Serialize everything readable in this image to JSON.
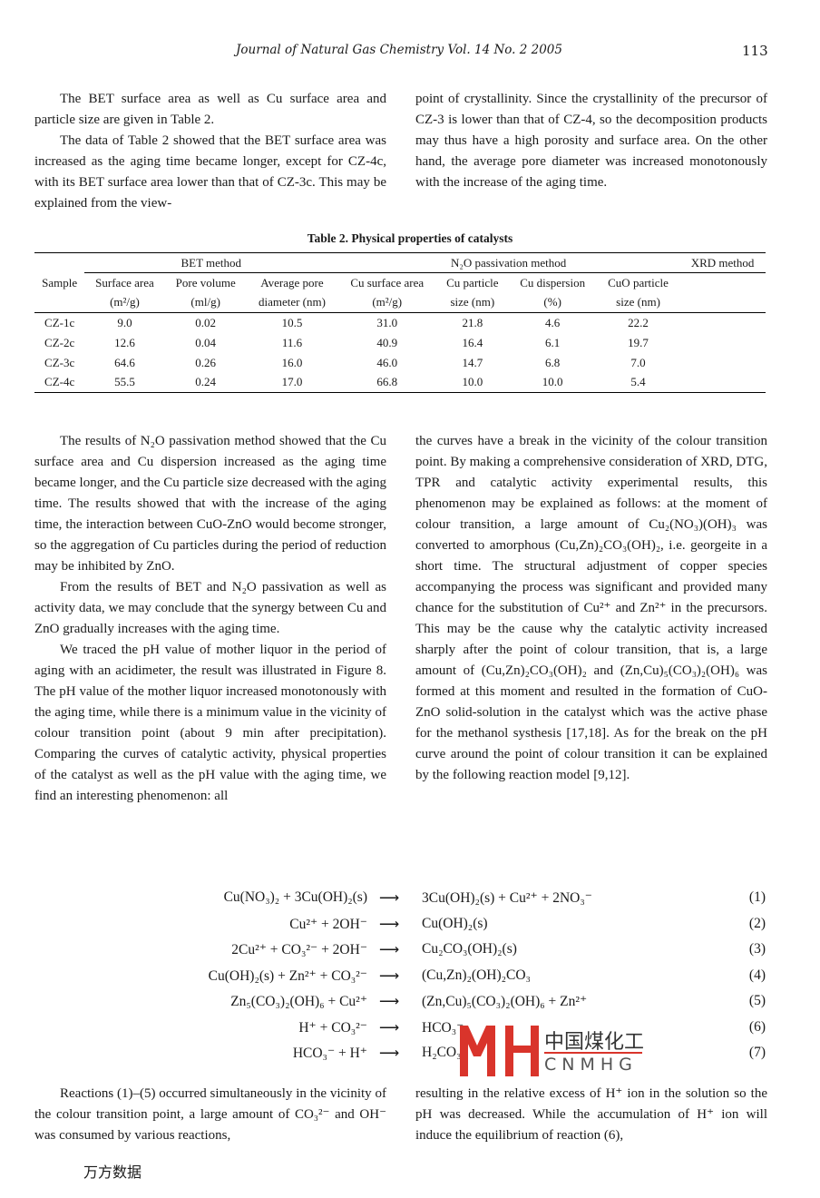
{
  "header": {
    "journal": "Journal of Natural Gas Chemistry Vol. 14 No. 2 2005",
    "page": "113"
  },
  "top_left": [
    "The BET surface area as well as Cu surface area and particle size are given in Table 2.",
    "The data of Table 2 showed that the BET surface area was increased as the aging time became longer, except for CZ-4c, with its BET surface area lower than that of CZ-3c. This may be explained from the view-"
  ],
  "top_right": "point of crystallinity. Since the crystallinity of the precursor of CZ-3 is lower than that of CZ-4, so the decomposition products may thus have a high porosity and surface area. On the other hand, the average pore diameter was increased monotonously with the increase of the aging time.",
  "table": {
    "caption": "Table 2. Physical properties of catalysts",
    "groups": [
      "BET method",
      "N₂O passivation method",
      "XRD method"
    ],
    "sample_header": "Sample",
    "headers1": [
      "Surface area",
      "Pore volume",
      "Average pore",
      "Cu surface area",
      "Cu particle",
      "Cu dispersion",
      "CuO particle"
    ],
    "headers2": [
      "(m²/g)",
      "(ml/g)",
      "diameter (nm)",
      "(m²/g)",
      "size (nm)",
      "(%)",
      "size (nm)"
    ],
    "rows": [
      [
        "CZ-1c",
        "9.0",
        "0.02",
        "10.5",
        "31.0",
        "21.8",
        "4.6",
        "22.2"
      ],
      [
        "CZ-2c",
        "12.6",
        "0.04",
        "11.6",
        "40.9",
        "16.4",
        "6.1",
        "19.7"
      ],
      [
        "CZ-3c",
        "64.6",
        "0.26",
        "16.0",
        "46.0",
        "14.7",
        "6.8",
        "7.0"
      ],
      [
        "CZ-4c",
        "55.5",
        "0.24",
        "17.0",
        "66.8",
        "10.0",
        "10.0",
        "5.4"
      ]
    ]
  },
  "mid_left": [
    "The results of N₂O passivation method showed that the Cu surface area and Cu dispersion increased as the aging time became longer, and the Cu particle size decreased with the aging time. The results showed that with the increase of the aging time, the interaction between CuO-ZnO would become stronger, so the aggregation of Cu particles during the period of reduction may be inhibited by ZnO.",
    "From the results of BET and N₂O passivation as well as activity data, we may conclude that the synergy between Cu and ZnO gradually increases with the aging time.",
    "We traced the pH value of mother liquor in the period of aging with an acidimeter, the result was illustrated in Figure 8. The pH value of the mother liquor increased monotonously with the aging time, while there is a minimum value in the vicinity of colour transition point (about 9 min after precipitation). Comparing the curves of catalytic activity, physical properties of the catalyst as well as the pH value with the aging time, we find an interesting phenomenon: all"
  ],
  "mid_right": "the curves have a break in the vicinity of the colour transition point. By making a comprehensive consideration of XRD, DTG, TPR and catalytic activity experimental results, this phenomenon may be explained as follows: at the moment of colour transition, a large amount of Cu₂(NO₃)(OH)₃ was converted to amorphous (Cu,Zn)₂CO₃(OH)₂, i.e. georgeite in a short time. The structural adjustment of copper species accompanying the process was significant and provided many chance for the substitution of Cu²⁺ and Zn²⁺ in the precursors. This may be the cause why the catalytic activity increased sharply after the point of colour transition, that is, a large amount of (Cu,Zn)₂CO₃(OH)₂ and (Zn,Cu)₅(CO₃)₂(OH)₆ was formed at this moment and resulted in the formation of CuO-ZnO solid-solution in the catalyst which was the active phase for the methanol systhesis [17,18]. As for the break on the pH curve around the point of colour transition it can be explained by the following reaction model [9,12].",
  "equations": [
    {
      "lhs": "Cu(NO₃)₂ + 3Cu(OH)₂(s)",
      "rhs": "3Cu(OH)₂(s) + Cu²⁺ + 2NO₃⁻",
      "num": "(1)"
    },
    {
      "lhs": "Cu²⁺ + 2OH⁻",
      "rhs": "Cu(OH)₂(s)",
      "num": "(2)"
    },
    {
      "lhs": "2Cu²⁺ + CO₃²⁻ + 2OH⁻",
      "rhs": "Cu₂CO₃(OH)₂(s)",
      "num": "(3)"
    },
    {
      "lhs": "Cu(OH)₂(s) + Zn²⁺ + CO₃²⁻",
      "rhs": "(Cu,Zn)₂(OH)₂CO₃",
      "num": "(4)"
    },
    {
      "lhs": "Zn₅(CO₃)₂(OH)₆ + Cu²⁺",
      "rhs": "(Zn,Cu)₅(CO₃)₂(OH)₆ + Zn²⁺",
      "num": "(5)"
    },
    {
      "lhs": "H⁺ + CO₃²⁻",
      "rhs": "HCO₃⁻",
      "num": "(6)"
    },
    {
      "lhs": "HCO₃⁻ + H⁺",
      "rhs": "H₂CO₃",
      "num": "(7)"
    }
  ],
  "arrow": "⟶",
  "bottom_left": "Reactions (1)–(5) occurred simultaneously in the vicinity of the colour transition point, a large amount of CO₃²⁻ and OH⁻ was consumed by various reactions,",
  "bottom_right": "resulting in the relative excess of H⁺ ion in the solution so the pH was decreased. While the accumulation of H⁺ ion will induce the equilibrium of reaction (6),",
  "watermark": {
    "cn": "中国煤化工",
    "en": "CNMHG",
    "color": "#d9342b"
  },
  "footer": "万方数据"
}
